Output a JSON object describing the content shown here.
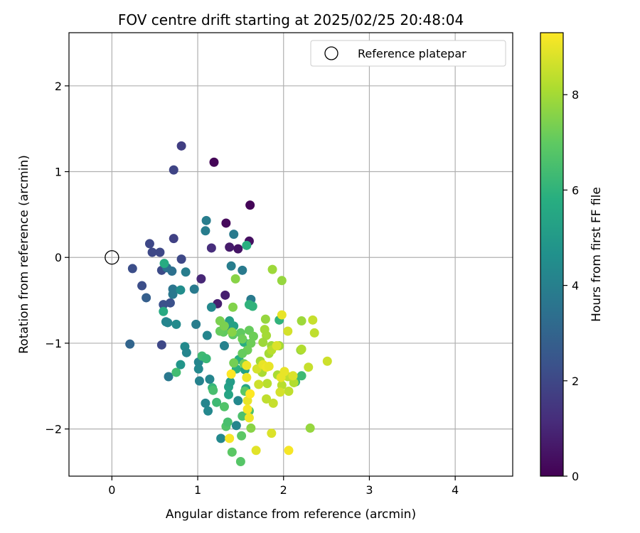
{
  "chart_data": {
    "type": "scatter",
    "title": "FOV centre drift starting at 2025/02/25 20:48:04",
    "xlabel": "Angular distance from reference (arcmin)",
    "ylabel": "Rotation from reference (arcmin)",
    "xlim": [
      -0.5,
      4.67
    ],
    "ylim": [
      -2.55,
      2.62
    ],
    "xticks": [
      0,
      1,
      2,
      3,
      4
    ],
    "yticks": [
      -2,
      -1,
      0,
      1,
      2
    ],
    "grid": true,
    "legend": {
      "position": "top-right",
      "entries": [
        "Reference platepar"
      ]
    },
    "colorbar": {
      "label": "Hours from first FF file",
      "range": [
        0,
        9.3
      ],
      "ticks": [
        0,
        2,
        4,
        6,
        8
      ],
      "colormap": "viridis"
    },
    "reference_point": {
      "x": 0,
      "y": 0
    },
    "points": [
      {
        "x": 1.19,
        "y": 1.11,
        "c": 0.1
      },
      {
        "x": 1.61,
        "y": 0.61,
        "c": 0.1
      },
      {
        "x": 1.33,
        "y": 0.4,
        "c": 0.2
      },
      {
        "x": 1.6,
        "y": 0.19,
        "c": 0.4
      },
      {
        "x": 1.47,
        "y": 0.1,
        "c": 0.5
      },
      {
        "x": 1.37,
        "y": 0.12,
        "c": 0.7
      },
      {
        "x": 1.32,
        "y": -0.44,
        "c": 0.8
      },
      {
        "x": 1.23,
        "y": -0.54,
        "c": 0.8
      },
      {
        "x": 1.04,
        "y": -0.25,
        "c": 1.0
      },
      {
        "x": 1.16,
        "y": 0.11,
        "c": 1.2
      },
      {
        "x": 0.81,
        "y": 1.3,
        "c": 1.7
      },
      {
        "x": 0.72,
        "y": 1.02,
        "c": 1.9
      },
      {
        "x": 0.72,
        "y": 0.22,
        "c": 1.8
      },
      {
        "x": 0.44,
        "y": 0.16,
        "c": 2.0
      },
      {
        "x": 0.47,
        "y": 0.06,
        "c": 2.0
      },
      {
        "x": 0.56,
        "y": 0.06,
        "c": 2.0
      },
      {
        "x": 0.81,
        "y": -0.02,
        "c": 2.0
      },
      {
        "x": 0.24,
        "y": -0.13,
        "c": 2.2
      },
      {
        "x": 0.35,
        "y": -0.33,
        "c": 2.2
      },
      {
        "x": 0.58,
        "y": -0.15,
        "c": 2.1
      },
      {
        "x": 0.6,
        "y": -0.55,
        "c": 2.3
      },
      {
        "x": 0.68,
        "y": -0.53,
        "c": 2.3
      },
      {
        "x": 0.58,
        "y": -1.02,
        "c": 2.0
      },
      {
        "x": 0.4,
        "y": -0.47,
        "c": 2.8
      },
      {
        "x": 0.21,
        "y": -1.01,
        "c": 3.0
      },
      {
        "x": 0.64,
        "y": -0.12,
        "c": 3.5
      },
      {
        "x": 0.7,
        "y": -0.16,
        "c": 3.4
      },
      {
        "x": 0.71,
        "y": -0.37,
        "c": 3.6
      },
      {
        "x": 0.71,
        "y": -0.43,
        "c": 3.7
      },
      {
        "x": 0.86,
        "y": -0.17,
        "c": 3.9
      },
      {
        "x": 0.96,
        "y": -0.37,
        "c": 3.8
      },
      {
        "x": 0.98,
        "y": -0.78,
        "c": 3.9
      },
      {
        "x": 0.63,
        "y": -0.75,
        "c": 4.2
      },
      {
        "x": 0.65,
        "y": -0.76,
        "c": 4.2
      },
      {
        "x": 0.75,
        "y": -0.78,
        "c": 4.4
      },
      {
        "x": 0.8,
        "y": -0.38,
        "c": 4.5
      },
      {
        "x": 1.1,
        "y": 0.43,
        "c": 3.9
      },
      {
        "x": 1.09,
        "y": 0.31,
        "c": 3.9
      },
      {
        "x": 1.42,
        "y": 0.27,
        "c": 3.8
      },
      {
        "x": 1.39,
        "y": -0.1,
        "c": 3.9
      },
      {
        "x": 1.52,
        "y": -0.15,
        "c": 3.8
      },
      {
        "x": 1.62,
        "y": -0.49,
        "c": 3.8
      },
      {
        "x": 1.16,
        "y": -0.58,
        "c": 4.3
      },
      {
        "x": 1.11,
        "y": -0.91,
        "c": 4.2
      },
      {
        "x": 1.36,
        "y": -0.81,
        "c": 4.3
      },
      {
        "x": 1.31,
        "y": -1.03,
        "c": 4.1
      },
      {
        "x": 0.66,
        "y": -1.39,
        "c": 3.7
      },
      {
        "x": 0.85,
        "y": -1.04,
        "c": 4.4
      },
      {
        "x": 0.87,
        "y": -1.11,
        "c": 4.2
      },
      {
        "x": 1.01,
        "y": -1.22,
        "c": 4.2
      },
      {
        "x": 1.01,
        "y": -1.3,
        "c": 4.3
      },
      {
        "x": 1.02,
        "y": -1.44,
        "c": 4.1
      },
      {
        "x": 1.14,
        "y": -1.42,
        "c": 4.2
      },
      {
        "x": 1.09,
        "y": -1.7,
        "c": 4.2
      },
      {
        "x": 1.12,
        "y": -1.79,
        "c": 4.3
      },
      {
        "x": 1.27,
        "y": -2.11,
        "c": 4.3
      },
      {
        "x": 1.45,
        "y": -1.96,
        "c": 4.2
      },
      {
        "x": 1.47,
        "y": -1.67,
        "c": 4.3
      },
      {
        "x": 0.8,
        "y": -1.25,
        "c": 4.8
      },
      {
        "x": 1.37,
        "y": -0.74,
        "c": 5.2
      },
      {
        "x": 1.42,
        "y": -0.8,
        "c": 5.3
      },
      {
        "x": 1.36,
        "y": -1.6,
        "c": 5.4
      },
      {
        "x": 1.36,
        "y": -1.51,
        "c": 5.3
      },
      {
        "x": 1.38,
        "y": -1.45,
        "c": 5.1
      },
      {
        "x": 1.55,
        "y": -1.31,
        "c": 5.3
      },
      {
        "x": 1.56,
        "y": -1.53,
        "c": 5.5
      },
      {
        "x": 1.48,
        "y": -1.19,
        "c": 5.8
      },
      {
        "x": 1.45,
        "y": -1.3,
        "c": 5.9
      },
      {
        "x": 1.54,
        "y": -0.99,
        "c": 5.8
      },
      {
        "x": 1.57,
        "y": 0.14,
        "c": 5.8
      },
      {
        "x": 1.6,
        "y": -0.55,
        "c": 6.0
      },
      {
        "x": 1.64,
        "y": -0.57,
        "c": 6.0
      },
      {
        "x": 1.95,
        "y": -0.73,
        "c": 6.0
      },
      {
        "x": 2.14,
        "y": -1.45,
        "c": 6.2
      },
      {
        "x": 2.21,
        "y": -1.38,
        "c": 6.3
      },
      {
        "x": 0.6,
        "y": -0.63,
        "c": 5.6
      },
      {
        "x": 0.61,
        "y": -0.07,
        "c": 5.7
      },
      {
        "x": 0.75,
        "y": -1.34,
        "c": 6.4
      },
      {
        "x": 1.05,
        "y": -1.15,
        "c": 6.3
      },
      {
        "x": 1.1,
        "y": -1.18,
        "c": 6.2
      },
      {
        "x": 1.17,
        "y": -1.52,
        "c": 6.1
      },
      {
        "x": 1.18,
        "y": -1.55,
        "c": 6.5
      },
      {
        "x": 1.22,
        "y": -1.69,
        "c": 6.3
      },
      {
        "x": 1.31,
        "y": -1.74,
        "c": 6.7
      },
      {
        "x": 1.33,
        "y": -1.97,
        "c": 6.7
      },
      {
        "x": 1.35,
        "y": -1.92,
        "c": 6.5
      },
      {
        "x": 1.4,
        "y": -2.27,
        "c": 6.9
      },
      {
        "x": 1.5,
        "y": -2.38,
        "c": 6.8
      },
      {
        "x": 1.51,
        "y": -2.08,
        "c": 6.9
      },
      {
        "x": 1.52,
        "y": -1.85,
        "c": 6.6
      },
      {
        "x": 1.55,
        "y": -1.56,
        "c": 6.9
      },
      {
        "x": 1.6,
        "y": -1.79,
        "c": 6.6
      },
      {
        "x": 1.41,
        "y": -0.9,
        "c": 6.9
      },
      {
        "x": 1.3,
        "y": -0.87,
        "c": 7.0
      },
      {
        "x": 1.26,
        "y": -0.86,
        "c": 7.1
      },
      {
        "x": 1.5,
        "y": -0.88,
        "c": 7.0
      },
      {
        "x": 1.52,
        "y": -0.95,
        "c": 7.2
      },
      {
        "x": 1.6,
        "y": -0.85,
        "c": 7.1
      },
      {
        "x": 1.65,
        "y": -0.92,
        "c": 7.2
      },
      {
        "x": 1.58,
        "y": -1.08,
        "c": 7.2
      },
      {
        "x": 1.52,
        "y": -1.12,
        "c": 7.1
      },
      {
        "x": 1.62,
        "y": -1.0,
        "c": 7.2
      },
      {
        "x": 1.54,
        "y": -1.24,
        "c": 7.3
      },
      {
        "x": 1.42,
        "y": -1.23,
        "c": 7.3
      },
      {
        "x": 1.44,
        "y": -0.25,
        "c": 7.6
      },
      {
        "x": 1.41,
        "y": -0.58,
        "c": 7.5
      },
      {
        "x": 1.26,
        "y": -0.74,
        "c": 7.4
      },
      {
        "x": 1.31,
        "y": -0.8,
        "c": 7.4
      },
      {
        "x": 1.4,
        "y": -0.87,
        "c": 7.6
      },
      {
        "x": 1.87,
        "y": -0.14,
        "c": 7.9
      },
      {
        "x": 1.98,
        "y": -0.27,
        "c": 7.8
      },
      {
        "x": 1.62,
        "y": -1.99,
        "c": 7.6
      },
      {
        "x": 1.79,
        "y": -0.72,
        "c": 7.8
      },
      {
        "x": 1.78,
        "y": -0.84,
        "c": 8.0
      },
      {
        "x": 1.8,
        "y": -0.91,
        "c": 8.0
      },
      {
        "x": 1.76,
        "y": -0.99,
        "c": 7.9
      },
      {
        "x": 1.83,
        "y": -1.12,
        "c": 8.0
      },
      {
        "x": 1.86,
        "y": -1.03,
        "c": 7.9
      },
      {
        "x": 1.95,
        "y": -1.03,
        "c": 8.0
      },
      {
        "x": 2.21,
        "y": -0.74,
        "c": 7.9
      },
      {
        "x": 2.2,
        "y": -1.08,
        "c": 7.8
      },
      {
        "x": 1.73,
        "y": -1.21,
        "c": 8.0
      },
      {
        "x": 1.75,
        "y": -1.34,
        "c": 8.1
      },
      {
        "x": 1.81,
        "y": -1.47,
        "c": 8.3
      },
      {
        "x": 1.93,
        "y": -1.37,
        "c": 8.1
      },
      {
        "x": 2.05,
        "y": -1.39,
        "c": 8.4
      },
      {
        "x": 2.12,
        "y": -1.46,
        "c": 8.2
      },
      {
        "x": 2.36,
        "y": -0.88,
        "c": 8.4
      },
      {
        "x": 2.34,
        "y": -0.73,
        "c": 8.5
      },
      {
        "x": 2.51,
        "y": -1.21,
        "c": 8.6
      },
      {
        "x": 2.29,
        "y": -1.28,
        "c": 8.5
      },
      {
        "x": 2.31,
        "y": -1.99,
        "c": 7.8
      },
      {
        "x": 2.06,
        "y": -1.56,
        "c": 8.4
      },
      {
        "x": 1.98,
        "y": -1.49,
        "c": 8.3
      },
      {
        "x": 1.96,
        "y": -1.57,
        "c": 8.7
      },
      {
        "x": 1.88,
        "y": -1.7,
        "c": 8.5
      },
      {
        "x": 1.8,
        "y": -1.65,
        "c": 8.4
      },
      {
        "x": 1.71,
        "y": -1.48,
        "c": 8.6
      },
      {
        "x": 1.69,
        "y": -1.3,
        "c": 8.7
      },
      {
        "x": 1.76,
        "y": -1.25,
        "c": 9.0
      },
      {
        "x": 1.8,
        "y": -1.28,
        "c": 9.1
      },
      {
        "x": 1.83,
        "y": -1.27,
        "c": 9.0
      },
      {
        "x": 1.57,
        "y": -1.26,
        "c": 9.1
      },
      {
        "x": 1.86,
        "y": -2.05,
        "c": 8.8
      },
      {
        "x": 1.68,
        "y": -2.25,
        "c": 8.9
      },
      {
        "x": 2.06,
        "y": -2.25,
        "c": 9.2
      },
      {
        "x": 1.58,
        "y": -1.67,
        "c": 9.0
      },
      {
        "x": 1.58,
        "y": -1.77,
        "c": 9.2
      },
      {
        "x": 1.6,
        "y": -1.87,
        "c": 9.1
      },
      {
        "x": 1.61,
        "y": -1.59,
        "c": 9.3
      },
      {
        "x": 1.37,
        "y": -2.11,
        "c": 9.2
      },
      {
        "x": 1.39,
        "y": -1.36,
        "c": 9.3
      },
      {
        "x": 1.57,
        "y": -1.4,
        "c": 9.1
      },
      {
        "x": 1.98,
        "y": -0.67,
        "c": 9.0
      },
      {
        "x": 2.05,
        "y": -0.86,
        "c": 8.7
      },
      {
        "x": 2.11,
        "y": -1.38,
        "c": 8.8
      },
      {
        "x": 2.21,
        "y": -1.07,
        "c": 8.2
      },
      {
        "x": 1.86,
        "y": -1.08,
        "c": 8.3
      },
      {
        "x": 1.92,
        "y": -1.03,
        "c": 8.8
      },
      {
        "x": 1.97,
        "y": -1.4,
        "c": 9.0
      },
      {
        "x": 2.01,
        "y": -1.33,
        "c": 9.0
      }
    ]
  }
}
